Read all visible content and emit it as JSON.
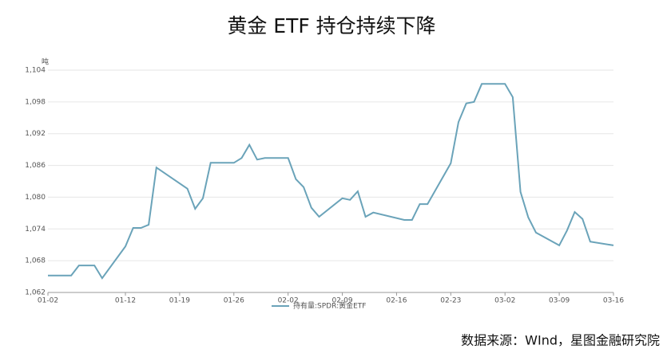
{
  "chart_data": {
    "type": "line",
    "title": "黄金 ETF 持仓持续下降",
    "y_label": "吨",
    "source": "数据来源：WInd，星图金融研究院",
    "x": [
      "01-02",
      "01-05",
      "01-06",
      "01-08",
      "01-09",
      "01-12",
      "01-13",
      "01-14",
      "01-15",
      "01-16",
      "01-20",
      "01-21",
      "01-22",
      "01-23",
      "01-26",
      "01-27",
      "01-28",
      "01-29",
      "01-30",
      "02-02",
      "02-03",
      "02-04",
      "02-05",
      "02-06",
      "02-09",
      "02-10",
      "02-11",
      "02-12",
      "02-13",
      "02-17",
      "02-18",
      "02-19",
      "02-20",
      "02-23",
      "02-24",
      "02-25",
      "02-26",
      "02-27",
      "03-02",
      "03-03",
      "03-04",
      "03-05",
      "03-06",
      "03-09",
      "03-10",
      "03-11",
      "03-12",
      "03-13",
      "03-16"
    ],
    "series": [
      {
        "name": "持有量:SPDR:黄金ETF",
        "color": "#6aa3b9",
        "values": [
          1065.2,
          1065.2,
          1067.1,
          1067.1,
          1064.7,
          1070.7,
          1074.2,
          1074.2,
          1074.8,
          1085.6,
          1081.6,
          1077.8,
          1079.8,
          1086.5,
          1086.5,
          1087.4,
          1089.9,
          1087.1,
          1087.4,
          1087.4,
          1083.4,
          1081.9,
          1078.0,
          1076.3,
          1079.8,
          1079.5,
          1081.1,
          1076.3,
          1077.1,
          1075.7,
          1075.7,
          1078.7,
          1078.7,
          1086.4,
          1094.2,
          1097.7,
          1098.0,
          1101.4,
          1101.4,
          1098.9,
          1081.0,
          1076.2,
          1073.3,
          1070.9,
          1073.7,
          1077.2,
          1075.9,
          1071.6,
          1070.9
        ]
      }
    ],
    "xticks": [
      "01-02",
      "01-12",
      "01-19",
      "01-26",
      "02-02",
      "02-09",
      "02-16",
      "02-23",
      "03-02",
      "03-09",
      "03-16"
    ],
    "ylim": [
      1062,
      1104
    ],
    "yticks": [
      {
        "value": 1062,
        "label": "1,062"
      },
      {
        "value": 1068,
        "label": "1,068"
      },
      {
        "value": 1074,
        "label": "1,074"
      },
      {
        "value": 1080,
        "label": "1,080"
      },
      {
        "value": 1086,
        "label": "1,086"
      },
      {
        "value": 1092,
        "label": "1,092"
      },
      {
        "value": 1098,
        "label": "1,098"
      },
      {
        "value": 1104,
        "label": "1,104"
      }
    ],
    "grid": true
  }
}
